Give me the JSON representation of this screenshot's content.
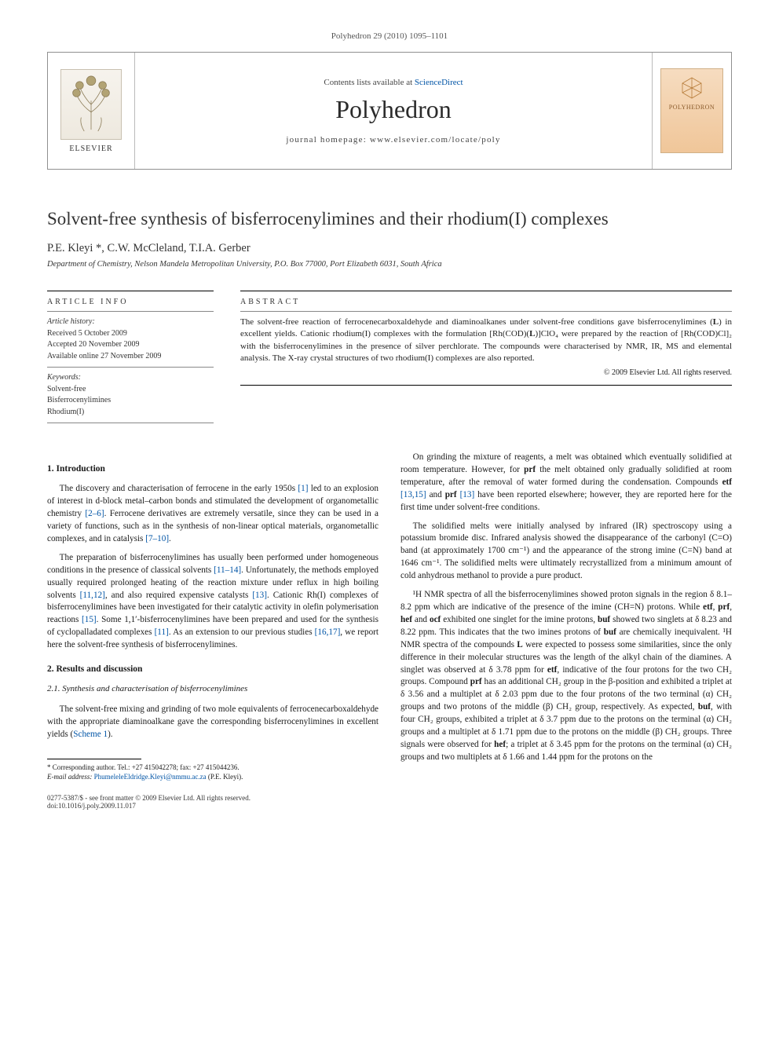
{
  "journal_ref": "Polyhedron 29 (2010) 1095–1101",
  "header": {
    "contents_prefix": "Contents lists available at ",
    "contents_link": "ScienceDirect",
    "journal_name": "Polyhedron",
    "homepage_prefix": "journal homepage: ",
    "homepage": "www.elsevier.com/locate/poly",
    "publisher": "ELSEVIER",
    "cover_label": "POLYHEDRON"
  },
  "title": "Solvent-free synthesis of bisferrocenylimines and their rhodium(I) complexes",
  "authors": "P.E. Kleyi *, C.W. McCleland, T.I.A. Gerber",
  "affiliation": "Department of Chemistry, Nelson Mandela Metropolitan University, P.O. Box 77000, Port Elizabeth 6031, South Africa",
  "article_info": {
    "head": "ARTICLE INFO",
    "history_label": "Article history:",
    "received": "Received 5 October 2009",
    "accepted": "Accepted 20 November 2009",
    "online": "Available online 27 November 2009",
    "keywords_label": "Keywords:",
    "keywords": [
      "Solvent-free",
      "Bisferrocenylimines",
      "Rhodium(I)"
    ]
  },
  "abstract": {
    "head": "ABSTRACT",
    "text": "The solvent-free reaction of ferrocenecarboxaldehyde and diaminoalkanes under solvent-free conditions gave bisferrocenylimines (L) in excellent yields. Cationic rhodium(I) complexes with the formulation [Rh(COD)(L)]ClO₄ were prepared by the reaction of [Rh(COD)Cl]₂ with the bisferrocenylimines in the presence of silver perchlorate. The compounds were characterised by NMR, IR, MS and elemental analysis. The X-ray crystal structures of two rhodium(I) complexes are also reported.",
    "copyright": "© 2009 Elsevier Ltd. All rights reserved."
  },
  "sections": {
    "s1_head": "1. Introduction",
    "s1p1": "The discovery and characterisation of ferrocene in the early 1950s [1] led to an explosion of interest in d-block metal–carbon bonds and stimulated the development of organometallic chemistry [2–6]. Ferrocene derivatives are extremely versatile, since they can be used in a variety of functions, such as in the synthesis of non-linear optical materials, organometallic complexes, and in catalysis [7–10].",
    "s1p2": "The preparation of bisferrocenylimines has usually been performed under homogeneous conditions in the presence of classical solvents [11–14]. Unfortunately, the methods employed usually required prolonged heating of the reaction mixture under reflux in high boiling solvents [11,12], and also required expensive catalysts [13]. Cationic Rh(I) complexes of bisferrocenylimines have been investigated for their catalytic activity in olefin polymerisation reactions [15]. Some 1,1′-bisferrocenylimines have been prepared and used for the synthesis of cyclopalladated complexes [11]. As an extension to our previous studies [16,17], we report here the solvent-free synthesis of bisferrocenylimines.",
    "s2_head": "2. Results and discussion",
    "s21_head": "2.1. Synthesis and characterisation of bisferrocenylimines",
    "s21p1": "The solvent-free mixing and grinding of two mole equivalents of ferrocenecarboxaldehyde with the appropriate diaminoalkane gave the corresponding bisferrocenylimines in excellent yields (Scheme 1).",
    "s21p_r1": "On grinding the mixture of reagents, a melt was obtained which eventually solidified at room temperature. However, for prf the melt obtained only gradually solidified at room temperature, after the removal of water formed during the condensation. Compounds etf [13,15] and prf [13] have been reported elsewhere; however, they are reported here for the first time under solvent-free conditions.",
    "s21p_r2": "The solidified melts were initially analysed by infrared (IR) spectroscopy using a potassium bromide disc. Infrared analysis showed the disappearance of the carbonyl (C=O) band (at approximately 1700 cm⁻¹) and the appearance of the strong imine (C=N) band at 1646 cm⁻¹. The solidified melts were ultimately recrystallized from a minimum amount of cold anhydrous methanol to provide a pure product.",
    "s21p_r3": "¹H NMR spectra of all the bisferrocenylimines showed proton signals in the region δ 8.1–8.2 ppm which are indicative of the presence of the imine (CH=N) protons. While etf, prf, hef and ocf exhibited one singlet for the imine protons, buf showed two singlets at δ 8.23 and 8.22 ppm. This indicates that the two imines protons of buf are chemically inequivalent. ¹H NMR spectra of the compounds L were expected to possess some similarities, since the only difference in their molecular structures was the length of the alkyl chain of the diamines. A singlet was observed at δ 3.78 ppm for etf, indicative of the four protons for the two CH₂ groups. Compound prf has an additional CH₂ group in the β-position and exhibited a triplet at δ 3.56 and a multiplet at δ 2.03 ppm due to the four protons of the two terminal (α) CH₂ groups and two protons of the middle (β) CH₂ group, respectively. As expected, buf, with four CH₂ groups, exhibited a triplet at δ 3.7 ppm due to the protons on the terminal (α) CH₂ groups and a multiplet at δ 1.71 ppm due to the protons on the middle (β) CH₂ groups. Three signals were observed for hef; a triplet at δ 3.45 ppm for the protons on the terminal (α) CH₂ groups and two multiplets at δ 1.66 and 1.44 ppm for the protons on the"
  },
  "footnote": {
    "corr": "* Corresponding author. Tel.: +27 415042278; fax: +27 415044236.",
    "email_label": "E-mail address:",
    "email": "PhumeleleEldridge.Kleyi@nmmu.ac.za",
    "email_suffix": "(P.E. Kleyi)."
  },
  "footer": {
    "line1": "0277-5387/$ - see front matter © 2009 Elsevier Ltd. All rights reserved.",
    "line2": "doi:10.1016/j.poly.2009.11.017"
  },
  "colors": {
    "link": "#0054a6",
    "cover_bg_top": "#f6dcc0",
    "cover_bg_bot": "#f0c699"
  }
}
